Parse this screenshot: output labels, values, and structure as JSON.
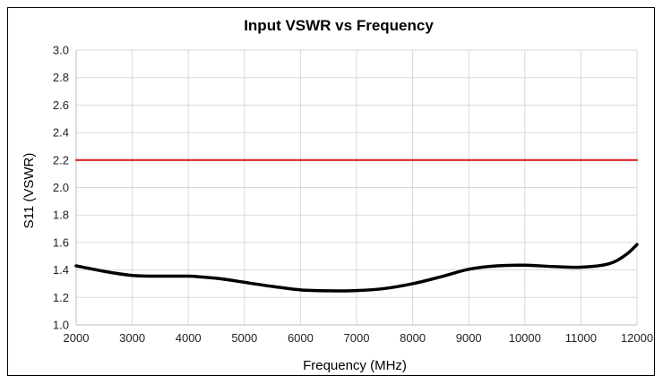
{
  "chart_data": {
    "type": "line",
    "title": "Input VSWR vs Frequency",
    "xlabel": "Frequency (MHz)",
    "ylabel": "S11 (VSWR)",
    "xlim": [
      2000,
      12000
    ],
    "ylim": [
      1.0,
      3.0
    ],
    "x_ticks": [
      2000,
      3000,
      4000,
      5000,
      6000,
      7000,
      8000,
      9000,
      10000,
      11000,
      12000
    ],
    "y_ticks": [
      "1.0",
      "1.2",
      "1.4",
      "1.6",
      "1.8",
      "2.0",
      "2.2",
      "2.4",
      "2.6",
      "2.8",
      "3.0"
    ],
    "grid": true,
    "legend": "none",
    "series": [
      {
        "color": "#000000",
        "x": [
          2000,
          2500,
          3000,
          3500,
          4000,
          4200,
          4600,
          5000,
          5500,
          6000,
          6500,
          7000,
          7500,
          8000,
          8500,
          9000,
          9500,
          10000,
          10500,
          11000,
          11500,
          11800,
          12000
        ],
        "y": [
          1.43,
          1.39,
          1.36,
          1.355,
          1.355,
          1.35,
          1.335,
          1.31,
          1.28,
          1.255,
          1.248,
          1.25,
          1.265,
          1.3,
          1.35,
          1.405,
          1.43,
          1.435,
          1.425,
          1.42,
          1.445,
          1.51,
          1.585
        ]
      },
      {
        "color": "#d62728",
        "x": [
          2000,
          12000
        ],
        "y": [
          2.2,
          2.2
        ]
      }
    ]
  }
}
